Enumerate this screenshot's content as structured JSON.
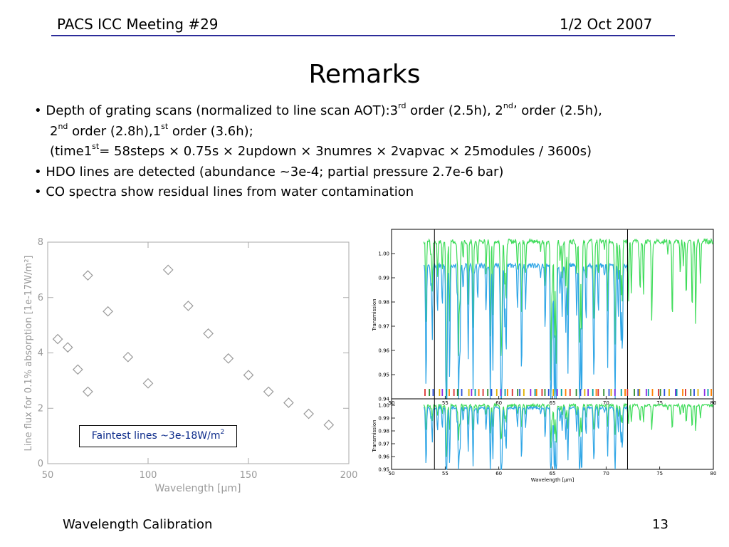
{
  "header": {
    "left": "PACS ICC Meeting #29",
    "right": "1/2 Oct 2007"
  },
  "title": "Remarks",
  "bullets": {
    "b1": {
      "l1a": "• Depth of grating scans (normalized to line scan AOT):3",
      "l1s1": "rd",
      "l1b": " order (2.5h), 2",
      "l1s2": "nd",
      "l1c": "’ order (2.5h),",
      "l2a": "2",
      "l2s1": "nd",
      "l2b": " order (2.8h),1",
      "l2s2": "st",
      "l2c": " order (3.6h);",
      "l3a": "(time1",
      "l3s1": "st",
      "l3b": "=  58steps × 0.75s × 2updown × 3numres × 2vapvac × 25modules / 3600s)"
    },
    "b2": "• HDO lines are detected (abundance ~3e-4; partial pressure 2.7e-6 bar)",
    "b3": "• CO spectra show residual lines from water contamination"
  },
  "chart_data": [
    {
      "type": "scatter",
      "xlabel": "Wavelength [μm]",
      "ylabel": "Line flux for 0.1% absorption [1e-17W/m²]",
      "xlim": [
        50,
        200
      ],
      "ylim": [
        0,
        8
      ],
      "x_ticks": [
        "50",
        "100",
        "150",
        "200"
      ],
      "y_ticks": [
        "0",
        "2",
        "4",
        "6",
        "8"
      ],
      "marker": "open-diamond",
      "color": "#9a9a9a",
      "points": [
        {
          "x": 55,
          "y": 4.5
        },
        {
          "x": 60,
          "y": 4.2
        },
        {
          "x": 65,
          "y": 3.4
        },
        {
          "x": 70,
          "y": 6.8
        },
        {
          "x": 70,
          "y": 2.6
        },
        {
          "x": 80,
          "y": 5.5
        },
        {
          "x": 90,
          "y": 3.85
        },
        {
          "x": 100,
          "y": 2.9
        },
        {
          "x": 110,
          "y": 7.0
        },
        {
          "x": 120,
          "y": 5.7
        },
        {
          "x": 130,
          "y": 4.7
        },
        {
          "x": 140,
          "y": 3.8
        },
        {
          "x": 150,
          "y": 3.2
        },
        {
          "x": 160,
          "y": 2.6
        },
        {
          "x": 170,
          "y": 2.2
        },
        {
          "x": 180,
          "y": 1.8
        },
        {
          "x": 190,
          "y": 1.4
        }
      ],
      "annotation": {
        "text": "Faintest lines ~3e-18W/m",
        "sup": "2"
      }
    },
    {
      "type": "line",
      "panels": [
        {
          "ylabel": "Transmission",
          "xlim": [
            50,
            80
          ],
          "ylim": [
            0.94,
            1.01
          ],
          "y_ticks": [
            "0.94",
            "0.95",
            "0.96",
            "0.97",
            "0.98",
            "0.99",
            "1.00"
          ],
          "x_ticks": [
            "50",
            "55",
            "60",
            "65",
            "70",
            "75",
            "80"
          ],
          "vlines": [
            54,
            72
          ]
        },
        {
          "ylabel": "Transmission",
          "xlabel": "Wavelength [μm]",
          "xlim": [
            50,
            80
          ],
          "ylim": [
            0.95,
            1.005
          ],
          "y_ticks": [
            "0.95",
            "0.96",
            "0.97",
            "0.98",
            "0.99",
            "1.00"
          ],
          "x_ticks": [
            "50",
            "55",
            "60",
            "65",
            "70",
            "75",
            "80"
          ],
          "vlines": [
            54,
            72
          ]
        }
      ],
      "series": [
        {
          "color": "#3fdc5a",
          "x_range": [
            53,
            80
          ],
          "baseline_top": 1.005,
          "baseline_bottom": 1.0
        },
        {
          "color": "#2fa6e6",
          "x_range": [
            53,
            72
          ],
          "baseline_top": 0.995,
          "baseline_bottom": 0.998
        }
      ],
      "line_markers_x_range": [
        53,
        80
      ],
      "line_marker_colors": [
        "#d93030",
        "#2e8b2e",
        "#2b4fd8",
        "#e0b000",
        "#8a2be2",
        "#00a0a0",
        "#ff7f00"
      ]
    }
  ],
  "footer": {
    "left": "Wavelength Calibration",
    "right": "13"
  }
}
